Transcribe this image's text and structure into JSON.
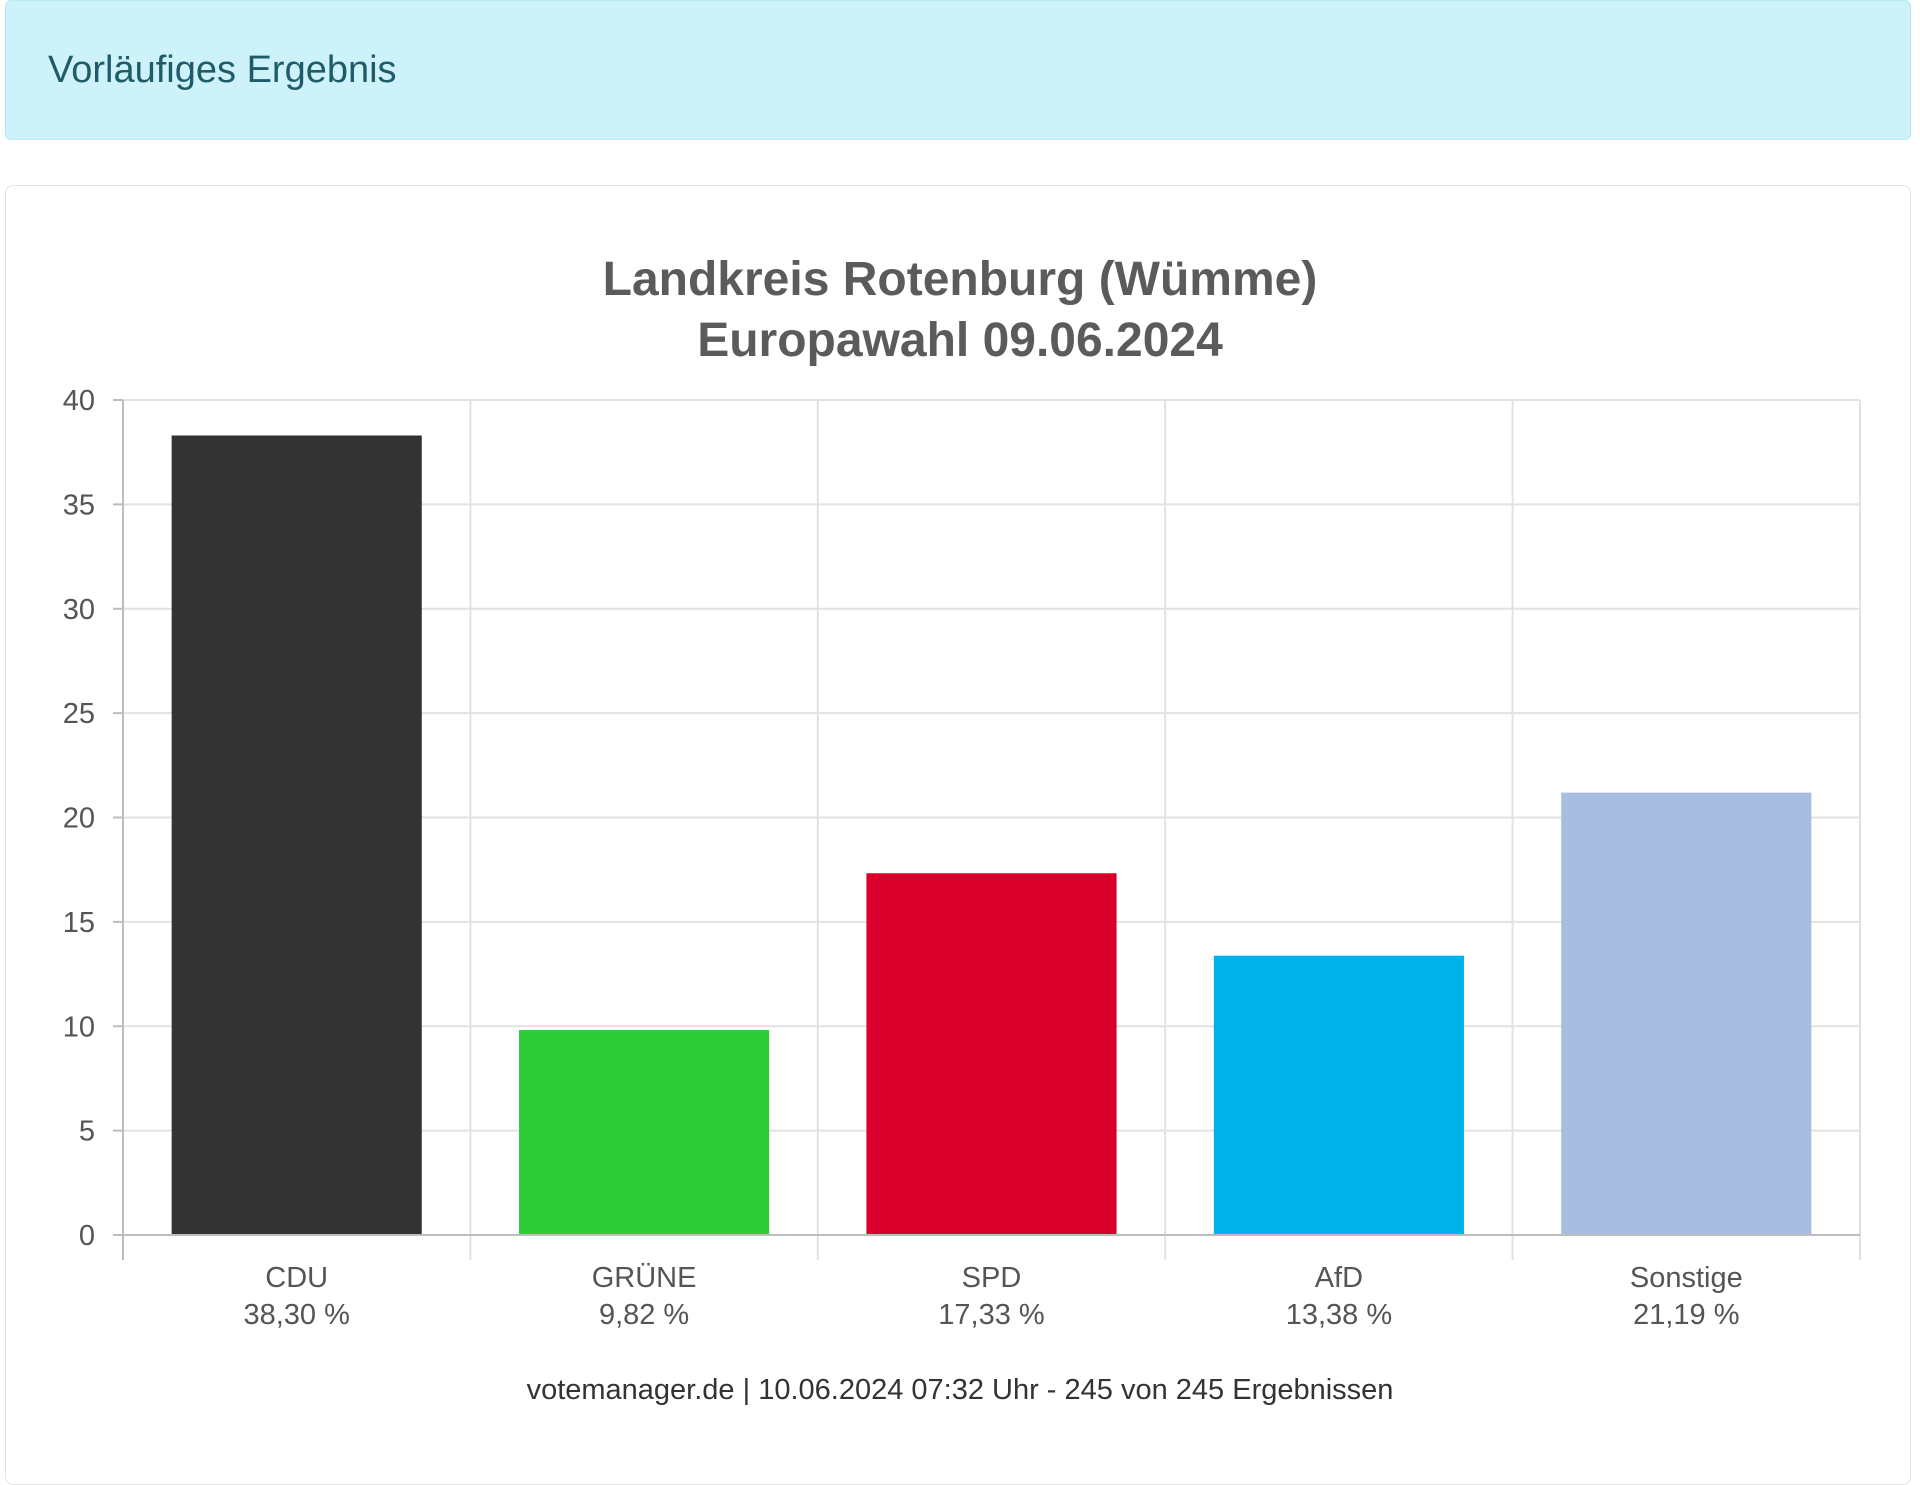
{
  "alert": {
    "text": "Vorläufiges Ergebnis"
  },
  "colors": {
    "alert_bg": "#cdf2fa",
    "CDU": "#333333",
    "GRÜNE": "#2ecc36",
    "SPD": "#d8002a",
    "AfD": "#00b2ea",
    "Sonstige": "#a8bee0"
  },
  "chart_data": {
    "type": "bar",
    "title": "Landkreis Rotenburg (Wümme)",
    "subtitle": "Europawahl 09.06.2024",
    "categories": [
      "CDU",
      "GRÜNE",
      "SPD",
      "AfD",
      "Sonstige"
    ],
    "values": [
      38.3,
      9.82,
      17.33,
      13.38,
      21.19
    ],
    "value_labels": [
      "38,30 %",
      "9,82 %",
      "17,33 %",
      "13,38 %",
      "21,19 %"
    ],
    "bar_colors": [
      "#333333",
      "#2ecc36",
      "#d8002a",
      "#00b2ea",
      "#a8bee0"
    ],
    "ylim": [
      0,
      40
    ],
    "yticks": [
      0,
      5,
      10,
      15,
      20,
      25,
      30,
      35,
      40
    ],
    "grid": true,
    "legend": "none"
  },
  "footer": {
    "text": "votemanager.de | 10.06.2024 07:32 Uhr - 245 von 245 Ergebnissen"
  }
}
